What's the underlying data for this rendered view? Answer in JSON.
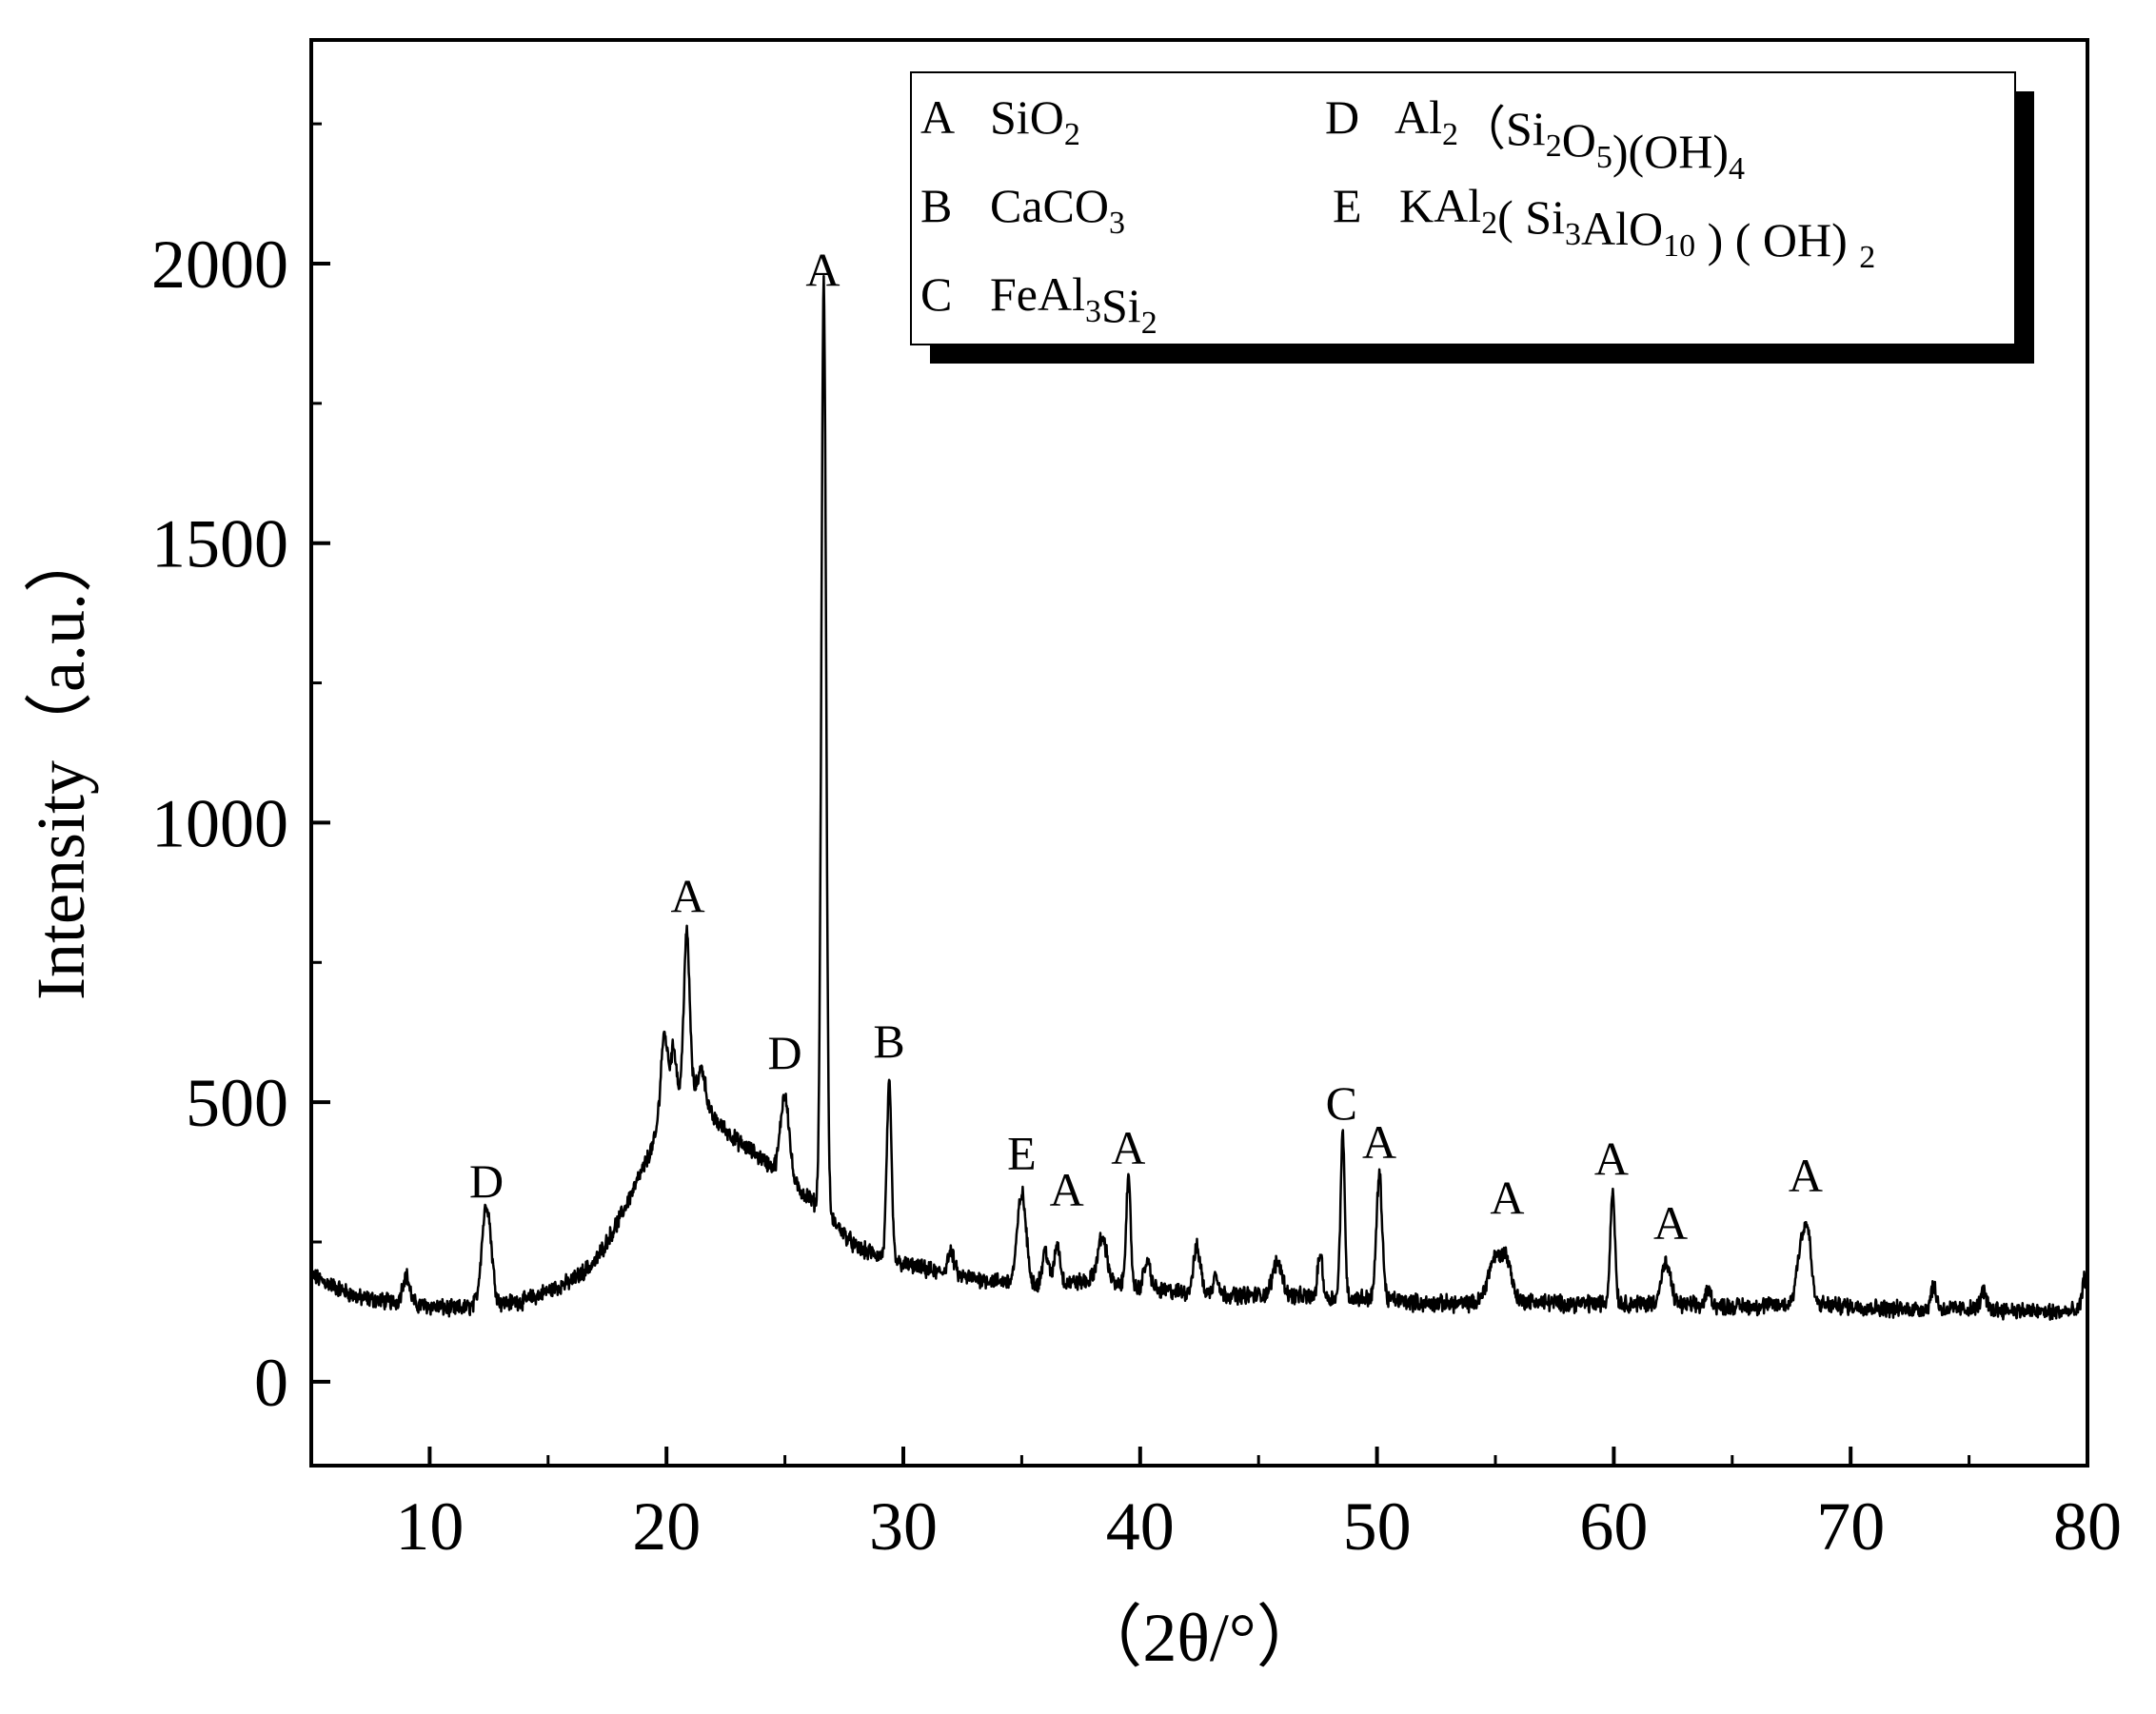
{
  "chart_data": {
    "type": "line",
    "title": "",
    "xlabel": "（2θ/°）",
    "ylabel": "Intensity（a.u.）",
    "xlim": [
      5,
      80
    ],
    "ylim": [
      -150,
      2400
    ],
    "x_ticks": [
      10,
      20,
      30,
      40,
      50,
      60,
      70,
      80
    ],
    "y_ticks": [
      0,
      500,
      1000,
      1500,
      2000
    ],
    "grid": false,
    "legend_placement": "top-right",
    "line_color": "#000000",
    "legend": [
      {
        "letter": "A",
        "parts": [
          [
            "SiO",
            ""
          ],
          [
            "2",
            "sub"
          ]
        ]
      },
      {
        "letter": "B",
        "parts": [
          [
            "CaCO",
            ""
          ],
          [
            "3",
            "sub"
          ]
        ]
      },
      {
        "letter": "C",
        "parts": [
          [
            "FeAl",
            ""
          ],
          [
            "3",
            "sub"
          ],
          [
            "Si",
            ""
          ],
          [
            "2",
            "sub"
          ]
        ]
      },
      {
        "letter": "D",
        "parts": [
          [
            "Al",
            ""
          ],
          [
            "2",
            "sub"
          ],
          [
            "（Si",
            ""
          ],
          [
            "2",
            "sub"
          ],
          [
            "O",
            ""
          ],
          [
            "5",
            "sub"
          ],
          [
            ")(OH)",
            ""
          ],
          [
            "4",
            "sub"
          ]
        ]
      },
      {
        "letter": "E",
        "parts": [
          [
            "KAl",
            ""
          ],
          [
            "2",
            "sub"
          ],
          [
            "( Si",
            ""
          ],
          [
            "3",
            "sub"
          ],
          [
            "AlO",
            ""
          ],
          [
            "10",
            "sub"
          ],
          [
            " ) ( OH) ",
            ""
          ],
          [
            "2",
            "sub"
          ]
        ]
      }
    ],
    "peak_labels": [
      {
        "label": "D",
        "x": 12.4,
        "y": 330
      },
      {
        "label": "A",
        "x": 20.9,
        "y": 840
      },
      {
        "label": "D",
        "x": 25.0,
        "y": 560
      },
      {
        "label": "A",
        "x": 26.6,
        "y": 1960
      },
      {
        "label": "B",
        "x": 29.4,
        "y": 580
      },
      {
        "label": "E",
        "x": 35.0,
        "y": 380
      },
      {
        "label": "A",
        "x": 36.9,
        "y": 315
      },
      {
        "label": "A",
        "x": 39.5,
        "y": 390
      },
      {
        "label": "C",
        "x": 48.5,
        "y": 470
      },
      {
        "label": "A",
        "x": 50.1,
        "y": 400
      },
      {
        "label": "A",
        "x": 55.5,
        "y": 300
      },
      {
        "label": "A",
        "x": 59.9,
        "y": 370
      },
      {
        "label": "A",
        "x": 62.4,
        "y": 255
      },
      {
        "label": "A",
        "x": 68.1,
        "y": 340
      }
    ],
    "series": [
      {
        "baseline": [
          [
            5,
            190
          ],
          [
            7,
            150
          ],
          [
            9,
            140
          ],
          [
            11,
            130
          ],
          [
            14,
            145
          ],
          [
            16,
            180
          ],
          [
            17,
            215
          ],
          [
            18,
            290
          ],
          [
            19,
            380
          ],
          [
            20,
            480
          ],
          [
            21,
            530
          ],
          [
            22,
            470
          ],
          [
            23,
            430
          ],
          [
            24,
            400
          ],
          [
            26,
            330
          ],
          [
            27,
            290
          ],
          [
            28,
            240
          ],
          [
            30,
            210
          ],
          [
            32,
            190
          ],
          [
            34,
            180
          ],
          [
            36,
            175
          ],
          [
            38,
            180
          ],
          [
            40,
            165
          ],
          [
            42,
            160
          ],
          [
            44,
            155
          ],
          [
            46,
            155
          ],
          [
            48,
            150
          ],
          [
            50,
            150
          ],
          [
            52,
            140
          ],
          [
            54,
            140
          ],
          [
            56,
            145
          ],
          [
            58,
            140
          ],
          [
            60,
            140
          ],
          [
            62,
            140
          ],
          [
            64,
            135
          ],
          [
            66,
            135
          ],
          [
            68,
            140
          ],
          [
            70,
            135
          ],
          [
            72,
            130
          ],
          [
            74,
            130
          ],
          [
            76,
            130
          ],
          [
            78,
            125
          ],
          [
            80,
            125
          ]
        ],
        "peaks": [
          [
            9.0,
            50,
            0.15
          ],
          [
            12.4,
            180,
            0.2
          ],
          [
            19.9,
            150,
            0.15
          ],
          [
            20.3,
            100,
            0.12
          ],
          [
            20.85,
            280,
            0.12
          ],
          [
            21.5,
            60,
            0.15
          ],
          [
            25.0,
            150,
            0.18
          ],
          [
            26.64,
            1660,
            0.1
          ],
          [
            29.4,
            310,
            0.1
          ],
          [
            32.0,
            40,
            0.15
          ],
          [
            35.0,
            160,
            0.18
          ],
          [
            36.0,
            60,
            0.12
          ],
          [
            36.5,
            70,
            0.12
          ],
          [
            38.4,
            80,
            0.2
          ],
          [
            39.5,
            190,
            0.1
          ],
          [
            40.3,
            50,
            0.15
          ],
          [
            42.4,
            80,
            0.15
          ],
          [
            43.2,
            40,
            0.1
          ],
          [
            45.8,
            60,
            0.2
          ],
          [
            47.6,
            80,
            0.1
          ],
          [
            48.55,
            290,
            0.09
          ],
          [
            50.1,
            220,
            0.12
          ],
          [
            55.0,
            80,
            0.3
          ],
          [
            55.5,
            60,
            0.2
          ],
          [
            59.95,
            200,
            0.1
          ],
          [
            62.2,
            70,
            0.2
          ],
          [
            64.0,
            30,
            0.12
          ],
          [
            67.9,
            100,
            0.18
          ],
          [
            68.2,
            110,
            0.15
          ],
          [
            73.5,
            40,
            0.12
          ],
          [
            75.6,
            30,
            0.12
          ],
          [
            79.9,
            60,
            0.12
          ]
        ],
        "noise": 12
      }
    ]
  }
}
